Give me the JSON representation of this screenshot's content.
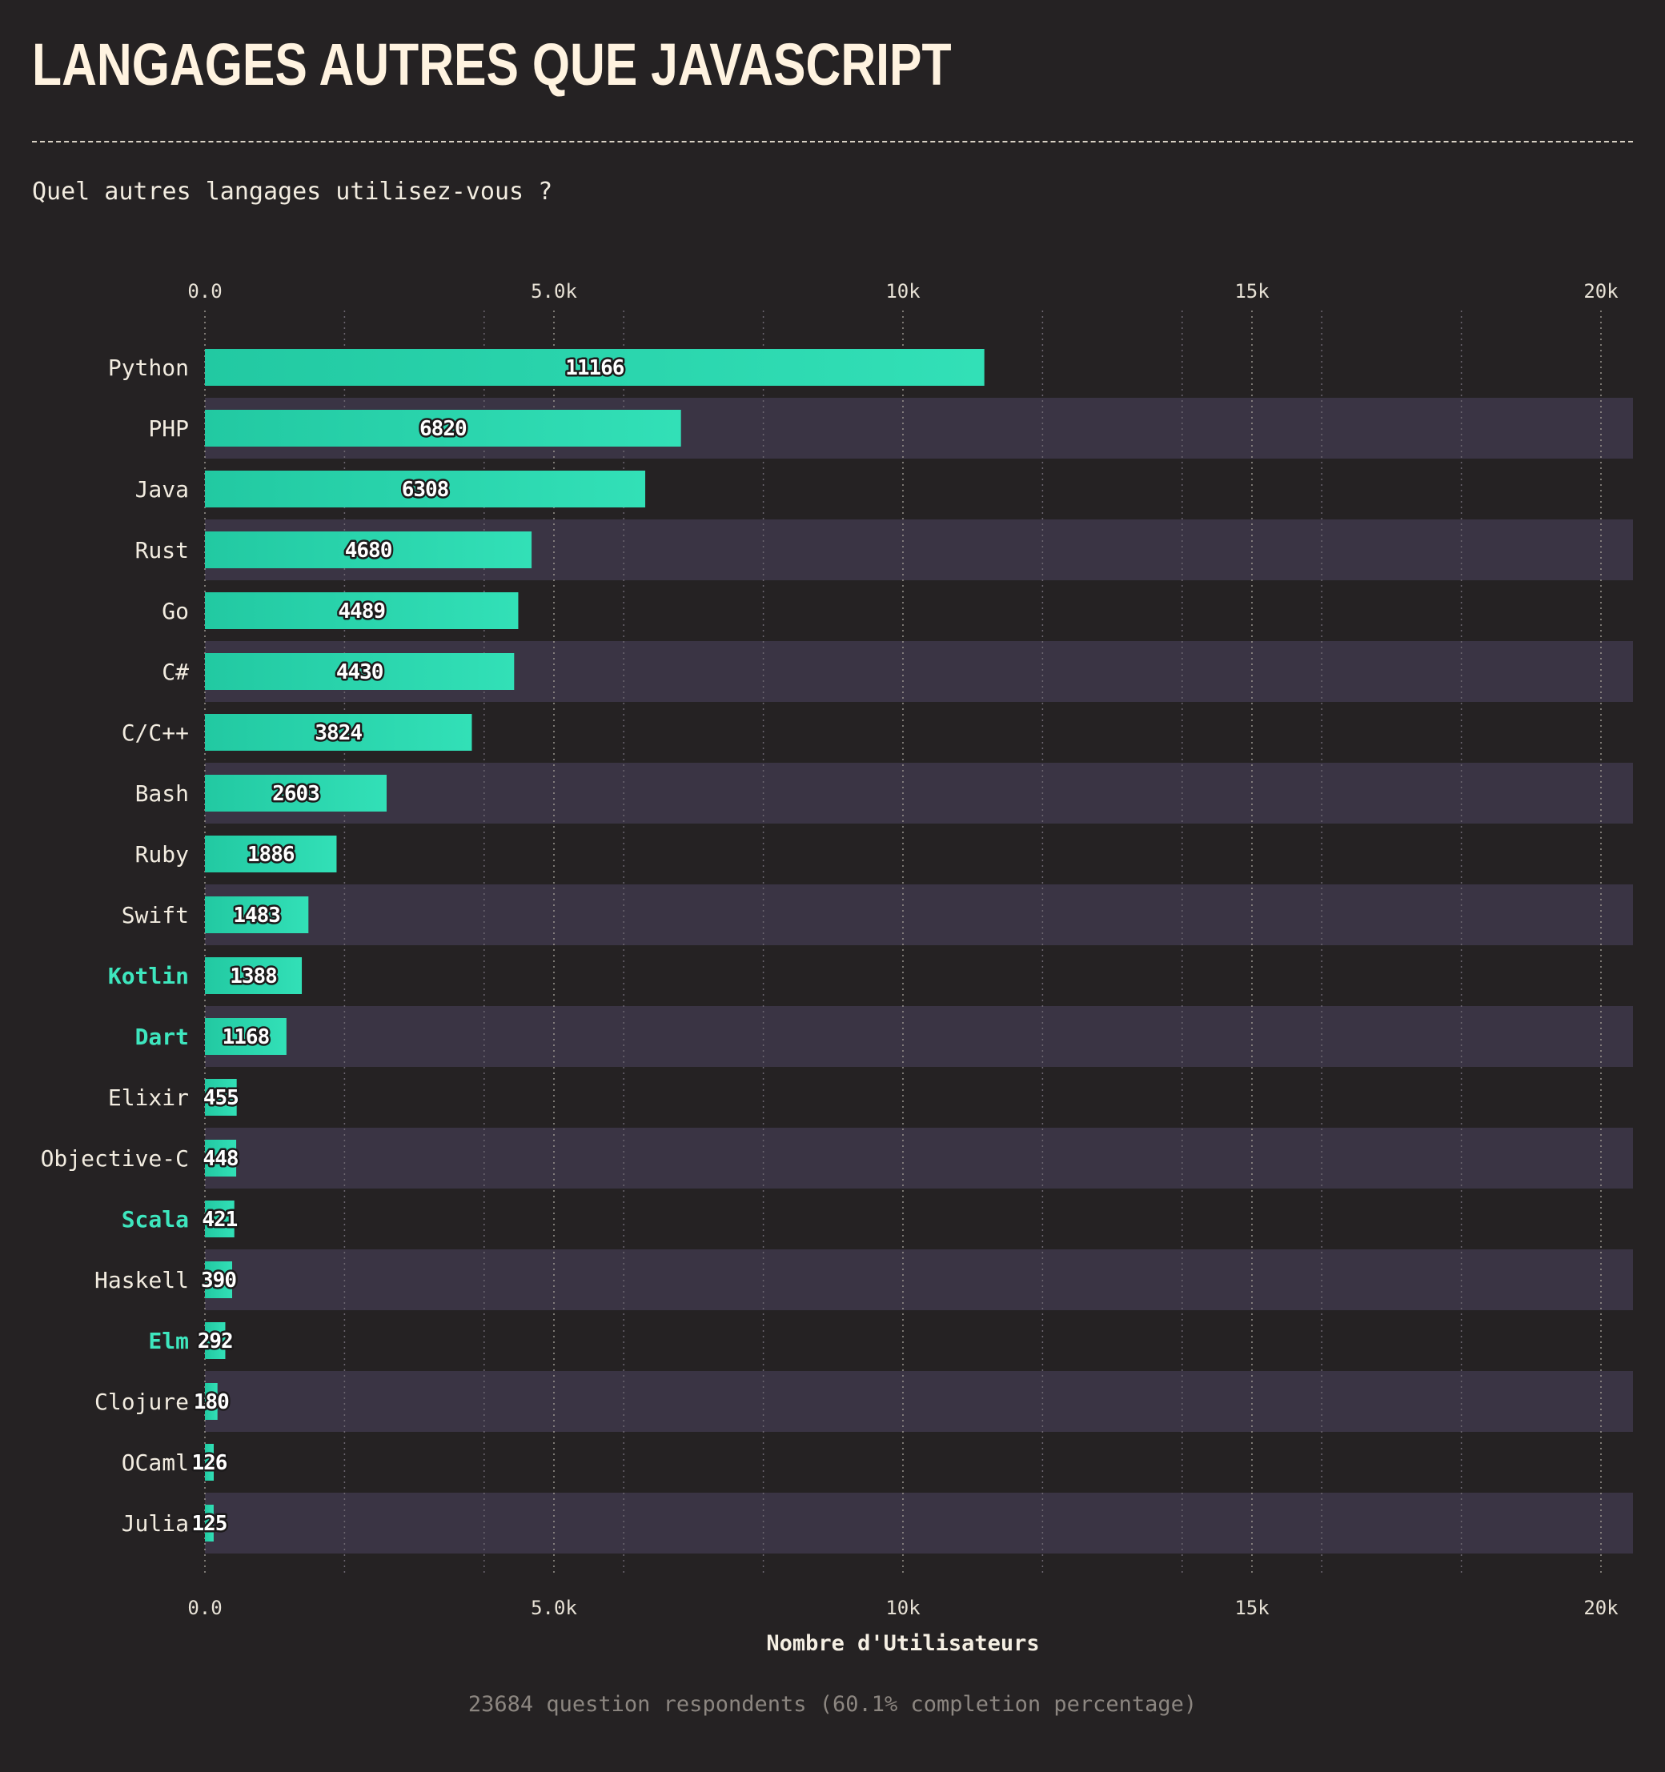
{
  "title": "LANGAGES AUTRES QUE JAVASCRIPT",
  "subtitle": "Quel autres langages utilisez-vous ?",
  "footer": "23684 question respondents (60.1% completion percentage)",
  "colors": {
    "bar": "#2ad4aa",
    "band": "#3a3444",
    "background": "#252223",
    "highlight_label": "#3ee6be",
    "text": "#f5efe3"
  },
  "chart_data": {
    "type": "bar",
    "orientation": "horizontal",
    "categories": [
      "Python",
      "PHP",
      "Java",
      "Rust",
      "Go",
      "C#",
      "C/C++",
      "Bash",
      "Ruby",
      "Swift",
      "Kotlin",
      "Dart",
      "Elixir",
      "Objective-C",
      "Scala",
      "Haskell",
      "Elm",
      "Clojure",
      "OCaml",
      "Julia"
    ],
    "values": [
      11166,
      6820,
      6308,
      4680,
      4489,
      4430,
      3824,
      2603,
      1886,
      1483,
      1388,
      1168,
      455,
      448,
      421,
      390,
      292,
      180,
      126,
      125
    ],
    "highlighted": [
      "Kotlin",
      "Dart",
      "Scala",
      "Elm"
    ],
    "xlabel": "Nombre d'Utilisateurs",
    "ylabel": "",
    "xlim": [
      0,
      20500
    ],
    "xticks": [
      0,
      5000,
      10000,
      15000,
      20000
    ],
    "xtick_labels": [
      "0.0",
      "5.0k",
      "10k",
      "15k",
      "20k"
    ],
    "minor_gridlines": [
      2000,
      4000,
      6000,
      8000,
      12000,
      14000,
      16000,
      18000
    ],
    "grid": true,
    "axis_position": "top-and-bottom"
  }
}
